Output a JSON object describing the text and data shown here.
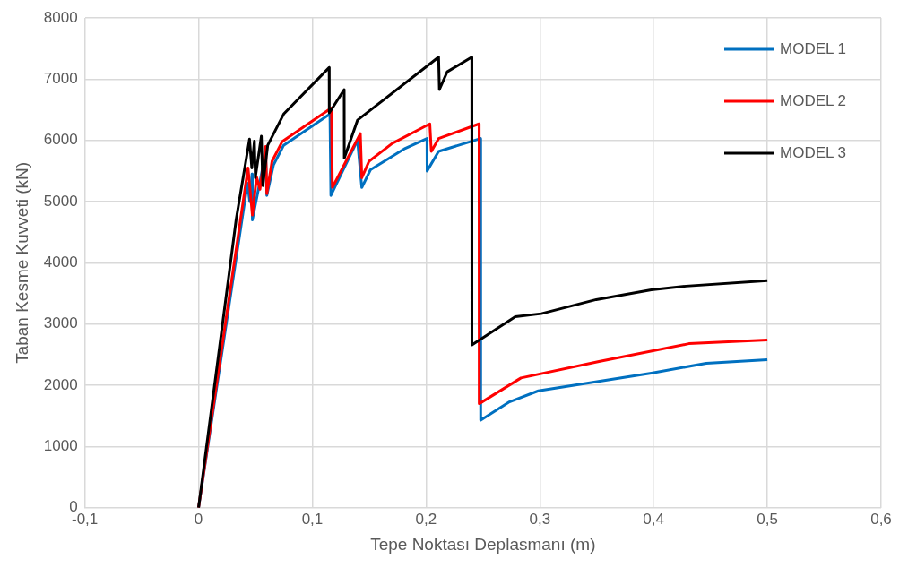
{
  "chart_data": {
    "type": "line",
    "xlabel": "Tepe Noktası Deplasmanı (m)",
    "ylabel": "Taban Kesme Kuvveti (kN)",
    "xlim": [
      -0.1,
      0.6
    ],
    "xticks": [
      {
        "value": -0.1,
        "label": "-0,1"
      },
      0,
      {
        "value": 0.1,
        "label": "0,1"
      },
      {
        "value": 0.2,
        "label": "0,2"
      },
      {
        "value": 0.3,
        "label": "0,3"
      },
      {
        "value": 0.4,
        "label": "0,4"
      },
      {
        "value": 0.5,
        "label": "0,5"
      },
      {
        "value": 0.6,
        "label": "0,6"
      }
    ],
    "ylim": [
      0,
      8000
    ],
    "yticks": [
      0,
      1000,
      2000,
      3000,
      4000,
      5000,
      6000,
      7000,
      8000
    ],
    "grid": true,
    "legend": "top right",
    "marker": "none",
    "line_style": "solid",
    "series": [
      {
        "name": "MODEL 1",
        "color": "#0070c0",
        "x": [
          0,
          0.043,
          0.045,
          0.047,
          0.0473,
          0.059,
          0.06,
          0.0659,
          0.0748,
          0.1155,
          0.1163,
          0.1397,
          0.1435,
          0.1511,
          0.1817,
          0.2008,
          0.2009,
          0.211,
          0.2479,
          0.248,
          0.2733,
          0.2987,
          0.398,
          0.4463,
          0.5
        ],
        "values": [
          0,
          5300,
          5000,
          5450,
          4700,
          5800,
          5100,
          5600,
          5920,
          6430,
          5100,
          6000,
          5230,
          5520,
          5870,
          6030,
          5500,
          5820,
          6030,
          1430,
          1730,
          1910,
          2200,
          2360,
          2420
        ]
      },
      {
        "name": "MODEL 2",
        "color": "#ff0000",
        "x": [
          0,
          0.0435,
          0.0473,
          0.051,
          0.054,
          0.059,
          0.06,
          0.0646,
          0.0735,
          0.1168,
          0.1176,
          0.1422,
          0.1435,
          0.1499,
          0.1702,
          0.2033,
          0.2046,
          0.211,
          0.2466,
          0.2467,
          0.2834,
          0.352,
          0.431,
          0.5
        ],
        "values": [
          0,
          5550,
          4780,
          5400,
          5200,
          5900,
          5130,
          5660,
          5980,
          6530,
          5230,
          6110,
          5390,
          5660,
          5950,
          6270,
          5820,
          6030,
          6270,
          1700,
          2120,
          2390,
          2680,
          2740
        ]
      },
      {
        "name": "MODEL 3",
        "color": "#000000",
        "x": [
          0,
          0.033,
          0.0448,
          0.0468,
          0.0491,
          0.0499,
          0.0552,
          0.0565,
          0.0608,
          0.0748,
          0.1148,
          0.1149,
          0.128,
          0.1281,
          0.1397,
          0.211,
          0.2117,
          0.2186,
          0.2402,
          0.2403,
          0.2784,
          0.3013,
          0.3496,
          0.398,
          0.4285,
          0.5
        ],
        "values": [
          0,
          4700,
          6020,
          5550,
          5990,
          5390,
          6070,
          5260,
          5920,
          6430,
          7190,
          6450,
          6830,
          5710,
          6330,
          7360,
          6830,
          7120,
          7360,
          2660,
          3120,
          3170,
          3400,
          3560,
          3620,
          3710
        ]
      }
    ]
  }
}
